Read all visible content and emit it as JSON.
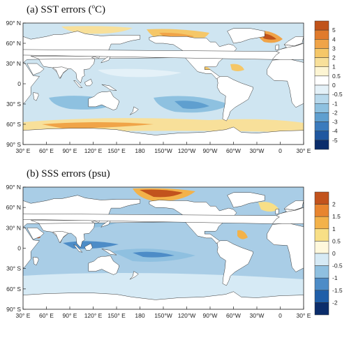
{
  "panels": [
    {
      "id": "sst",
      "title": "(a) SST errors (",
      "title_sup": "o",
      "title_end": "C)",
      "colorbar": {
        "labels": [
          "5",
          "4",
          "3",
          "2",
          "1",
          "0.5",
          "0",
          "-0.5",
          "-1",
          "-2",
          "-3",
          "-4",
          "-5"
        ],
        "colors": [
          "#c0531a",
          "#e07b2c",
          "#f0a448",
          "#f5c768",
          "#f8e09a",
          "#fdf5d3",
          "#ffffff",
          "#e4f1f8",
          "#b8d9ec",
          "#8ec1e0",
          "#5f9fcf",
          "#3b7bbd",
          "#1f57a0",
          "#0b2d6b"
        ]
      },
      "bg": "#cfe5f1"
    },
    {
      "id": "sss",
      "title": "(b) SSS errors (psu)",
      "colorbar": {
        "labels": [
          "2",
          "1.5",
          "1",
          "0.5",
          "0",
          "-0.5",
          "-1",
          "-1.5",
          "-2"
        ],
        "colors": [
          "#c2531d",
          "#e8852f",
          "#f3b24a",
          "#f8df86",
          "#fff8dc",
          "#d6eaf5",
          "#8fc0e0",
          "#4d8cc7",
          "#1f5ea8",
          "#0b2d6b"
        ]
      },
      "bg": "#a9cde6"
    }
  ],
  "lat_labels": [
    "90° N",
    "60° N",
    "30° N",
    "0",
    "30° S",
    "60° S",
    "90° S"
  ],
  "lon_labels": [
    "30° E",
    "60° E",
    "90° E",
    "120° E",
    "150° E",
    "180",
    "150°W",
    "120°W",
    "90°W",
    "60°W",
    "30°W",
    "0",
    "30° E"
  ],
  "colors": {
    "land": "#ffffff",
    "frame": "#222222"
  }
}
